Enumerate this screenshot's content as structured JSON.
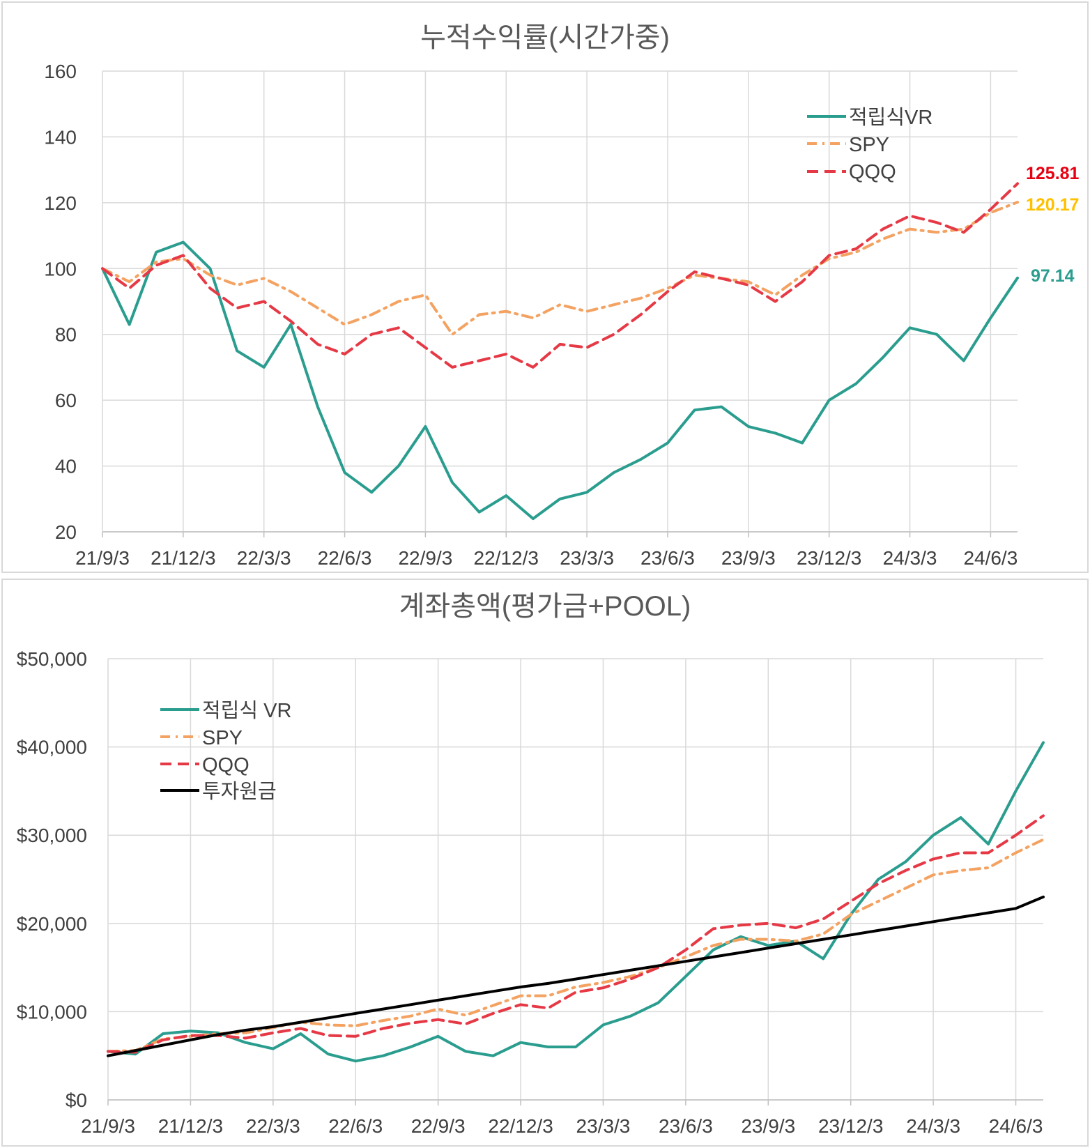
{
  "charts": [
    {
      "id": "cumulative",
      "type": "line",
      "title": "누적수익률(시간가중)",
      "xticks": [
        "21/9/3",
        "21/12/3",
        "22/3/3",
        "22/6/3",
        "22/9/3",
        "22/12/3",
        "23/3/3",
        "23/6/3",
        "23/9/3",
        "23/12/3",
        "24/3/3",
        "24/6/3"
      ],
      "yticks": [
        "160",
        "140",
        "120",
        "100",
        "80",
        "60",
        "40",
        "20"
      ],
      "ylim": [
        20,
        160
      ],
      "legend": [
        "적립식VR",
        "SPY",
        "QQQ"
      ],
      "end_labels": [
        "125.81",
        "120.17",
        "97.14"
      ]
    },
    {
      "id": "account",
      "type": "line",
      "title": "계좌총액(평가금+POOL)",
      "xticks": [
        "21/9/3",
        "21/12/3",
        "22/3/3",
        "22/6/3",
        "22/9/3",
        "22/12/3",
        "23/3/3",
        "23/6/3",
        "23/9/3",
        "23/12/3",
        "24/3/3",
        "24/6/3"
      ],
      "yticks": [
        "$50,000",
        "$40,000",
        "$30,000",
        "$20,000",
        "$10,000",
        "$0"
      ],
      "ylim": [
        0,
        50000
      ],
      "legend": [
        "적립식 VR",
        "SPY",
        "QQQ",
        "투자원금"
      ]
    }
  ],
  "chart_data": [
    {
      "type": "line",
      "title": "누적수익률(시간가중)",
      "x": [
        "21/9/3",
        "21/10/3",
        "21/11/3",
        "21/12/3",
        "22/1/3",
        "22/2/3",
        "22/3/3",
        "22/4/3",
        "22/5/3",
        "22/6/3",
        "22/7/3",
        "22/8/3",
        "22/9/3",
        "22/10/3",
        "22/11/3",
        "22/12/3",
        "23/1/3",
        "23/2/3",
        "23/3/3",
        "23/4/3",
        "23/5/3",
        "23/6/3",
        "23/7/3",
        "23/8/3",
        "23/9/3",
        "23/10/3",
        "23/11/3",
        "23/12/3",
        "24/1/3",
        "24/2/3",
        "24/3/3",
        "24/4/3",
        "24/5/3",
        "24/6/3",
        "24/7/1"
      ],
      "series": [
        {
          "name": "적립식VR",
          "color": "#2a9d8f",
          "values": [
            100,
            83,
            105,
            108,
            100,
            75,
            70,
            83,
            58,
            38,
            32,
            40,
            52,
            35,
            26,
            31,
            24,
            30,
            32,
            38,
            42,
            47,
            57,
            58,
            52,
            50,
            47,
            60,
            65,
            73,
            82,
            80,
            72,
            85,
            97.14
          ]
        },
        {
          "name": "SPY",
          "color": "#f4a261",
          "values": [
            100,
            96,
            102,
            103,
            98,
            95,
            97,
            93,
            88,
            83,
            86,
            90,
            92,
            80,
            86,
            87,
            85,
            89,
            87,
            89,
            91,
            94,
            98,
            97,
            96,
            92,
            98,
            103,
            105,
            109,
            112,
            111,
            112,
            117,
            120.17
          ]
        },
        {
          "name": "QQQ",
          "color": "#e63946",
          "values": [
            100,
            94,
            101,
            104,
            94,
            88,
            90,
            84,
            77,
            74,
            80,
            82,
            76,
            70,
            72,
            74,
            70,
            77,
            76,
            80,
            86,
            93,
            99,
            97,
            95,
            90,
            96,
            104,
            106,
            112,
            116,
            114,
            111,
            118,
            125.81
          ]
        }
      ],
      "xlabel": "",
      "ylabel": "",
      "ylim": [
        20,
        160
      ],
      "legend_position": "top-right",
      "grid": true
    },
    {
      "type": "line",
      "title": "계좌총액(평가금+POOL)",
      "x": [
        "21/9/3",
        "21/10/3",
        "21/11/3",
        "21/12/3",
        "22/1/3",
        "22/2/3",
        "22/3/3",
        "22/4/3",
        "22/5/3",
        "22/6/3",
        "22/7/3",
        "22/8/3",
        "22/9/3",
        "22/10/3",
        "22/11/3",
        "22/12/3",
        "23/1/3",
        "23/2/3",
        "23/3/3",
        "23/4/3",
        "23/5/3",
        "23/6/3",
        "23/7/3",
        "23/8/3",
        "23/9/3",
        "23/10/3",
        "23/11/3",
        "23/12/3",
        "24/1/3",
        "24/2/3",
        "24/3/3",
        "24/4/3",
        "24/5/3",
        "24/6/3",
        "24/7/1"
      ],
      "series": [
        {
          "name": "적립식 VR",
          "color": "#2a9d8f",
          "values": [
            5500,
            5200,
            7500,
            7800,
            7600,
            6500,
            5800,
            7500,
            5200,
            4400,
            5000,
            6000,
            7200,
            5500,
            5000,
            6500,
            6000,
            6000,
            8500,
            9500,
            11000,
            14000,
            17000,
            18500,
            17500,
            18000,
            16000,
            21000,
            25000,
            27000,
            30000,
            32000,
            29000,
            35000,
            40500
          ]
        },
        {
          "name": "SPY",
          "color": "#f4a261",
          "values": [
            5500,
            5600,
            6900,
            7200,
            7500,
            7600,
            8200,
            8800,
            8500,
            8400,
            9000,
            9500,
            10300,
            9600,
            10700,
            11800,
            11800,
            12800,
            13300,
            14000,
            15000,
            16200,
            17500,
            18200,
            18200,
            18000,
            18800,
            21000,
            22500,
            24000,
            25500,
            26000,
            26300,
            28000,
            29500
          ]
        },
        {
          "name": "QQQ",
          "color": "#e63946",
          "values": [
            5500,
            5400,
            6800,
            7300,
            7300,
            7000,
            7600,
            8100,
            7300,
            7200,
            8100,
            8700,
            9100,
            8600,
            9800,
            10800,
            10400,
            12200,
            12700,
            13700,
            15000,
            17000,
            19400,
            19800,
            20000,
            19500,
            20500,
            22500,
            24500,
            26000,
            27300,
            28000,
            28000,
            30000,
            32200
          ]
        },
        {
          "name": "투자원금",
          "color": "#000000",
          "values": [
            5000,
            5600,
            6200,
            6800,
            7400,
            7900,
            8300,
            8800,
            9300,
            9800,
            10300,
            10800,
            11300,
            11800,
            12300,
            12800,
            13200,
            13700,
            14200,
            14700,
            15200,
            15700,
            16200,
            16700,
            17200,
            17700,
            18200,
            18700,
            19200,
            19700,
            20200,
            20700,
            21200,
            21700,
            23000
          ]
        }
      ],
      "xlabel": "",
      "ylabel": "",
      "ylim": [
        0,
        50000
      ],
      "legend_position": "top-left",
      "grid": true
    }
  ]
}
